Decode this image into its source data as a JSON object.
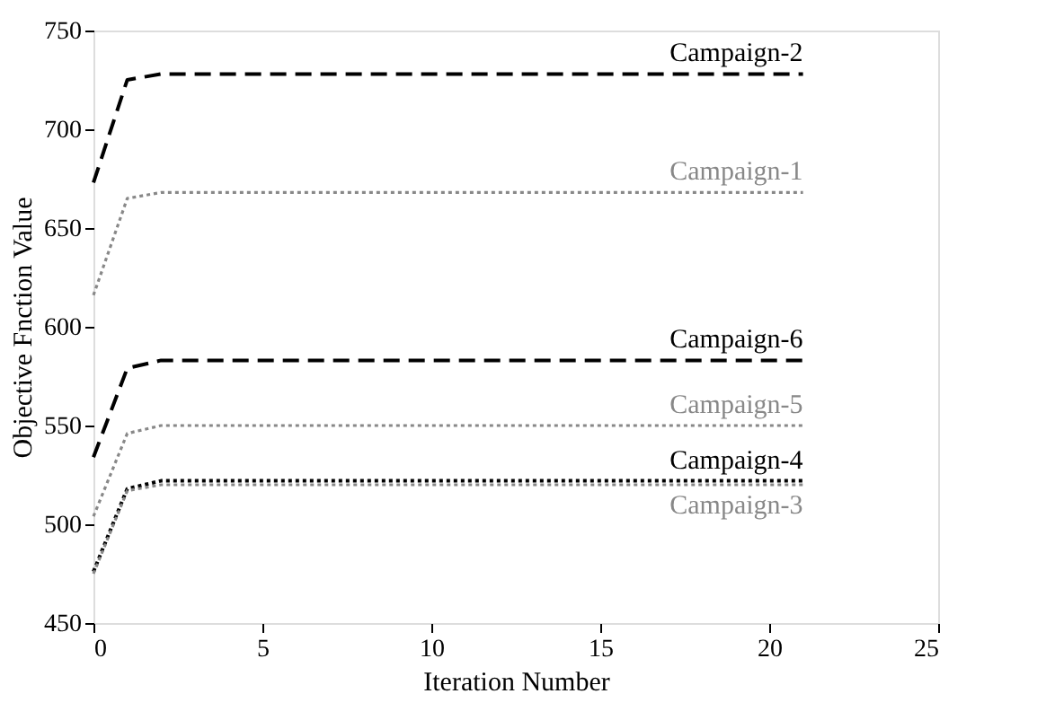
{
  "chart_data": {
    "type": "line",
    "xlabel": "Iteration Number",
    "ylabel": "Objective Fnction Value",
    "x": [
      0,
      1,
      2,
      21
    ],
    "xlim": [
      0,
      25
    ],
    "xticks": [
      0,
      5,
      10,
      15,
      20,
      25
    ],
    "ylim": [
      450,
      750
    ],
    "yticks": [
      450,
      500,
      550,
      600,
      650,
      700,
      750
    ],
    "grid": false,
    "legend": false,
    "marker": "none",
    "series": [
      {
        "name": "Campaign-2",
        "color": "#000000",
        "line_style": "dashed",
        "values": [
          673,
          725,
          728,
          728
        ]
      },
      {
        "name": "Campaign-1",
        "color": "#888888",
        "line_style": "dotted",
        "values": [
          616,
          665,
          668,
          668
        ]
      },
      {
        "name": "Campaign-6",
        "color": "#000000",
        "line_style": "dashed",
        "values": [
          534,
          579,
          583,
          583
        ]
      },
      {
        "name": "Campaign-5",
        "color": "#888888",
        "line_style": "dotted",
        "values": [
          504,
          546,
          550,
          550
        ]
      },
      {
        "name": "Campaign-4",
        "color": "#000000",
        "line_style": "dotted",
        "values": [
          476,
          518,
          522,
          522
        ]
      },
      {
        "name": "Campaign-3",
        "color": "#888888",
        "line_style": "dotted",
        "values": [
          475,
          517,
          520,
          520
        ]
      }
    ]
  }
}
